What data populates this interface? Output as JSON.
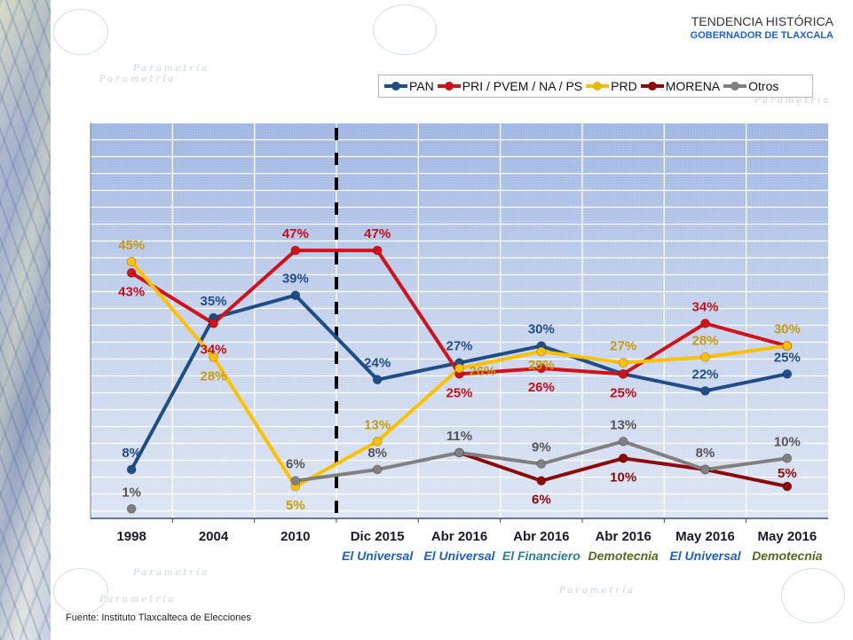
{
  "header": {
    "title": "TENDENCIA HISTÓRICA",
    "subtitle": "GOBERNADOR DE TLAXCALA"
  },
  "watermark_text": "Parametría",
  "source_note": "Fuente: Instituto Tlaxcalteca de Elecciones",
  "chart_data": {
    "type": "line",
    "title": "TENDENCIA HISTÓRICA",
    "subtitle": "GOBERNADOR DE TLAXCALA",
    "xlabel": "",
    "ylabel": "",
    "ylim": [
      0,
      70
    ],
    "grid": true,
    "legend_position": "top-right",
    "divider_after_category_index": 2,
    "categories": [
      "1998",
      "2004",
      "2010",
      "Dic 2015",
      "Abr 2016",
      "Abr 2016",
      "Abr 2016",
      "May 2016",
      "May 2016"
    ],
    "category_sources": [
      {
        "label": "",
        "color": ""
      },
      {
        "label": "",
        "color": ""
      },
      {
        "label": "",
        "color": ""
      },
      {
        "label": "El Universal",
        "color": "#1f5fc4"
      },
      {
        "label": "El Universal",
        "color": "#1f5fc4"
      },
      {
        "label": "El Financiero",
        "color": "#2e7d9a"
      },
      {
        "label": "Demotecnia",
        "color": "#4f6b1e"
      },
      {
        "label": "El Universal",
        "color": "#1f5fc4"
      },
      {
        "label": "Demotecnia",
        "color": "#4f6b1e"
      }
    ],
    "series": [
      {
        "name": "PAN",
        "color": "#1f4e86",
        "label_color": "#1f4e86",
        "values": [
          8,
          35,
          39,
          24,
          27,
          30,
          25,
          22,
          25
        ],
        "labels": [
          "8%",
          "35%",
          "39%",
          "24%",
          "27%",
          "30%",
          null,
          "22%",
          "25%"
        ]
      },
      {
        "name": "PRI / PVEM / NA / PS",
        "color": "#d0121b",
        "label_color": "#c0101a",
        "values": [
          43,
          34,
          47,
          47,
          25,
          26,
          25,
          34,
          30
        ],
        "labels": [
          "43%",
          "34%",
          "47%",
          "47%",
          "25%",
          "26%",
          "25%",
          "34%",
          null
        ]
      },
      {
        "name": "PRD",
        "color": "#ffc000",
        "label_color": "#c89a10",
        "values": [
          45,
          28,
          5,
          13,
          26,
          29,
          27,
          28,
          30
        ],
        "labels": [
          "45%",
          "28%",
          "5%",
          "13%",
          "26%",
          "29%",
          "27%",
          "28%",
          "30%"
        ]
      },
      {
        "name": "MORENA",
        "color": "#8b0a0a",
        "label_color": "#8b0a0a",
        "values": [
          null,
          null,
          null,
          null,
          11,
          6,
          10,
          8,
          5
        ],
        "labels": [
          null,
          null,
          null,
          null,
          null,
          "6%",
          "10%",
          null,
          "5%"
        ]
      },
      {
        "name": "Otros",
        "color": "#808080",
        "label_color": "#555555",
        "values": [
          1,
          null,
          6,
          8,
          11,
          9,
          13,
          8,
          10
        ],
        "labels": [
          "1%",
          null,
          "6%",
          "8%",
          "11%",
          "9%",
          "13%",
          "8%",
          "10%"
        ]
      }
    ]
  }
}
